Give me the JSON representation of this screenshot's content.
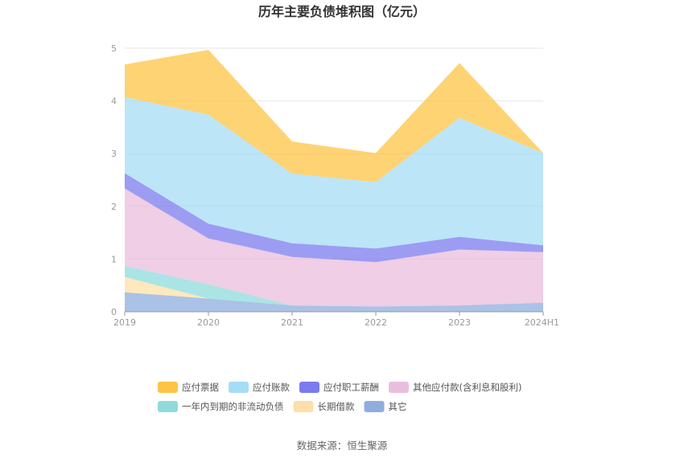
{
  "chart_data": {
    "type": "area",
    "stacked": true,
    "title": "历年主要负债堆积图（亿元）",
    "categories": [
      "2019",
      "2020",
      "2021",
      "2022",
      "2023",
      "2024H1"
    ],
    "ylim": [
      0,
      5
    ],
    "yticks": [
      "0",
      "1",
      "2",
      "3",
      "4",
      "5"
    ],
    "grid": true,
    "legend_position": "bottom",
    "series": [
      {
        "name": "其它",
        "color": "#8eaede",
        "values": [
          0.37,
          0.25,
          0.12,
          0.1,
          0.12,
          0.17
        ]
      },
      {
        "name": "长期借款",
        "color": "#fde0a8",
        "values": [
          0.29,
          0.0,
          0.0,
          0.0,
          0.0,
          0.0
        ]
      },
      {
        "name": "一年内到期的非流动负债",
        "color": "#8fdbdb",
        "values": [
          0.21,
          0.27,
          0.0,
          0.0,
          0.0,
          0.0
        ]
      },
      {
        "name": "其他应付款(含利息和股利)",
        "color": "#e9bedd",
        "values": [
          1.47,
          0.87,
          0.92,
          0.84,
          1.06,
          0.96
        ]
      },
      {
        "name": "应付职工薪酬",
        "color": "#7b7bef",
        "values": [
          0.29,
          0.28,
          0.26,
          0.26,
          0.24,
          0.13
        ]
      },
      {
        "name": "应付账款",
        "color": "#a6dcf6",
        "values": [
          1.44,
          2.07,
          1.32,
          1.26,
          2.26,
          1.75
        ]
      },
      {
        "name": "应付票据",
        "color": "#fdc445",
        "values": [
          0.62,
          1.23,
          0.61,
          0.55,
          1.04,
          0.0
        ]
      }
    ],
    "legend_order": [
      "应付票据",
      "应付账款",
      "应付职工薪酬",
      "其他应付款(含利息和股利)",
      "一年内到期的非流动负债",
      "长期借款",
      "其它"
    ]
  },
  "source_text": "数据来源：恒生聚源"
}
